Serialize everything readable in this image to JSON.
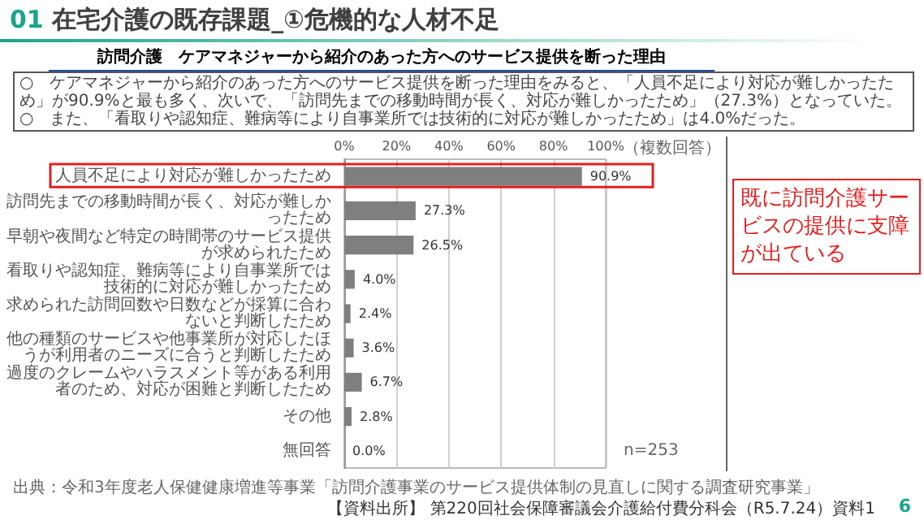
{
  "chart_data": {
    "type": "bar",
    "orientation": "horizontal",
    "title": "01 在宅介護の既存課題_①危機的な人材不足",
    "subtitle": "訪問介護　ケアマネジャーから紹介のあった方へのサービス提供を断った理由",
    "categories": [
      "人員不足により対応が難しかったため",
      "訪問先までの移動時間が長く、対応が難しかったため",
      "早朝や夜間など特定の時間帯のサービス提供が求められたため",
      "看取りや認知症、難病等により自事業所では技術的に対応が難しかったため",
      "求められた訪問回数や日数などが採算に合わないと判断したため",
      "他の種類のサービスや他事業所が対応したほうが利用者のニーズに合うと判断したため",
      "過度のクレームやハラスメント等がある利用者のため、対応が困難と判断したため",
      "その他",
      "無回答"
    ],
    "values": [
      90.9,
      27.3,
      26.5,
      4.0,
      2.4,
      3.6,
      6.7,
      2.8,
      0.0
    ],
    "value_labels": [
      "90.9%",
      "27.3%",
      "26.5%",
      "4.0%",
      "2.4%",
      "3.6%",
      "6.7%",
      "2.8%",
      "0.0%"
    ],
    "color": "#7f7f7f",
    "xlim": [
      0,
      100
    ],
    "xticks": [
      {
        "value": 0,
        "label": "0%"
      },
      {
        "value": 20,
        "label": "20%"
      },
      {
        "value": 40,
        "label": "40%"
      },
      {
        "value": 60,
        "label": "60%"
      },
      {
        "value": 80,
        "label": "80%"
      },
      {
        "value": 100,
        "label": "100%"
      }
    ],
    "grid": "x",
    "annotations": [
      "○　ケアマネジャーから紹介のあった方へのサービス提供を断った理由をみると、「人員不足により対応が難しかったため」が90.9%と最も多く、次いで、「訪問先までの移動時間が長く、対応が難しかったため」（27.3%）となっていた。",
      "○　また、「看取りや認知症、難病等により自事業所では技術的に対応が難しかったため」は4.0%だった。",
      "（複数回答）",
      "n=253",
      "既に訪問介護サービスの提供に支障が出ている",
      "出典：令和3年度老人保健健康増進等事業「訪問介護事業のサービス提供体制の見直しに関する調査研究事業」",
      "【資料出所】 第220回社会保障審議会介護給付費分科会（R5.7.24）資料1",
      "6"
    ]
  }
}
